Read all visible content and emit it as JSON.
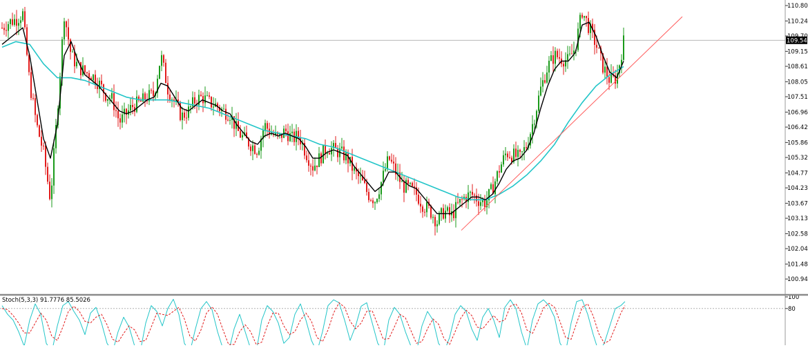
{
  "chart_data": [
    {
      "type": "candlestick",
      "title": "",
      "ylim": [
        100.4,
        111.0
      ],
      "y_ticks": [
        "110.800",
        "110.245",
        "109.705",
        "109.150",
        "108.610",
        "108.055",
        "107.515",
        "106.960",
        "106.420",
        "105.865",
        "105.325",
        "104.770",
        "104.230",
        "103.675",
        "103.135",
        "102.580",
        "102.040",
        "101.485",
        "100.945"
      ],
      "current_price": "109.549",
      "colors": {
        "up": "#1a9a1a",
        "down": "#e21b1b",
        "fast_ma": "#000000",
        "slow_ma": "#22c5c8",
        "trendline": "#ff5a5a",
        "price_line": "#b8b8b8"
      },
      "series": [
        {
          "kind": "price_close",
          "x": [
            0,
            10,
            20,
            30,
            40,
            50,
            60,
            70,
            80,
            90,
            100,
            110,
            120,
            130,
            140,
            150,
            160,
            170,
            180,
            190,
            200,
            210,
            220,
            230,
            240,
            250,
            260,
            270,
            280,
            290,
            300,
            310,
            320,
            330,
            340,
            350,
            360,
            370,
            380,
            390,
            400,
            410,
            420,
            430,
            440,
            450,
            460,
            470,
            480,
            490,
            500,
            510,
            520,
            530,
            540,
            550,
            560,
            570,
            580,
            590,
            600,
            610,
            620,
            630,
            640,
            650,
            660,
            670,
            680,
            690,
            700,
            710,
            720,
            730,
            740,
            750,
            760,
            770,
            780,
            790,
            800,
            810,
            820,
            830,
            840,
            850,
            860,
            870,
            880,
            890,
            900
          ],
          "values": [
            110.0,
            110.2,
            110.3,
            110.5,
            108.0,
            106.5,
            105.5,
            103.8,
            107.0,
            110.5,
            109.0,
            108.6,
            108.4,
            108.3,
            108.0,
            107.6,
            107.4,
            106.6,
            106.9,
            107.2,
            107.3,
            107.5,
            107.6,
            109.0,
            107.8,
            107.3,
            106.8,
            107.0,
            107.4,
            107.5,
            107.3,
            107.2,
            107.0,
            106.9,
            106.3,
            106.0,
            105.8,
            105.6,
            106.5,
            106.2,
            106.0,
            106.3,
            106.0,
            106.1,
            105.5,
            105.0,
            105.3,
            105.7,
            105.6,
            105.5,
            105.3,
            104.8,
            104.5,
            104.0,
            103.8,
            104.5,
            105.3,
            104.8,
            104.3,
            104.2,
            104.0,
            103.6,
            103.4,
            103.0,
            103.4,
            103.2,
            103.6,
            103.9,
            104.0,
            103.8,
            103.7,
            104.2,
            104.9,
            105.5,
            105.4,
            105.3,
            105.8,
            106.7,
            107.8,
            108.6,
            109.0,
            108.9,
            108.8,
            109.3,
            110.6,
            110.0,
            109.4,
            108.6,
            108.1,
            108.2,
            109.5
          ]
        },
        {
          "kind": "moving_average_fast",
          "x": [
            0,
            10,
            20,
            30,
            40,
            50,
            60,
            70,
            80,
            90,
            100,
            110,
            120,
            130,
            140,
            150,
            160,
            170,
            180,
            190,
            200,
            210,
            220,
            230,
            240,
            250,
            260,
            270,
            280,
            290,
            300,
            310,
            320,
            330,
            340,
            350,
            360,
            370,
            380,
            390,
            400,
            410,
            420,
            430,
            440,
            450,
            460,
            470,
            480,
            490,
            500,
            510,
            520,
            530,
            540,
            550,
            560,
            570,
            580,
            590,
            600,
            610,
            620,
            630,
            640,
            650,
            660,
            670,
            680,
            690,
            700,
            710,
            720,
            730,
            740,
            750,
            760,
            770,
            780,
            790,
            800,
            810,
            820,
            830,
            840,
            850,
            860,
            870,
            880,
            890,
            900
          ],
          "values": [
            109.4,
            109.6,
            109.8,
            110.0,
            109.0,
            107.5,
            106.0,
            105.3,
            106.5,
            109.0,
            109.5,
            108.8,
            108.3,
            108.1,
            107.9,
            107.6,
            107.3,
            107.0,
            106.9,
            107.0,
            107.2,
            107.4,
            107.5,
            108.0,
            107.9,
            107.5,
            107.1,
            107.0,
            107.2,
            107.4,
            107.3,
            107.2,
            107.0,
            106.9,
            106.5,
            106.2,
            105.9,
            105.8,
            106.1,
            106.2,
            106.1,
            106.2,
            106.1,
            106.0,
            105.7,
            105.3,
            105.3,
            105.5,
            105.6,
            105.5,
            105.4,
            105.0,
            104.7,
            104.4,
            104.1,
            104.3,
            104.8,
            104.8,
            104.5,
            104.3,
            104.2,
            103.9,
            103.6,
            103.3,
            103.3,
            103.3,
            103.5,
            103.7,
            103.9,
            103.9,
            103.8,
            104.0,
            104.4,
            104.9,
            105.2,
            105.3,
            105.6,
            106.2,
            107.1,
            107.9,
            108.5,
            108.8,
            108.8,
            109.1,
            110.1,
            110.2,
            109.7,
            109.0,
            108.4,
            108.2,
            108.8
          ]
        },
        {
          "kind": "moving_average_slow",
          "x": [
            0,
            20,
            40,
            60,
            80,
            100,
            120,
            140,
            160,
            180,
            200,
            220,
            240,
            260,
            280,
            300,
            320,
            340,
            360,
            380,
            400,
            420,
            440,
            460,
            480,
            500,
            520,
            540,
            560,
            580,
            600,
            620,
            640,
            660,
            680,
            700,
            720,
            740,
            760,
            780,
            800,
            820,
            840,
            860,
            880,
            900
          ],
          "values": [
            109.3,
            109.5,
            109.4,
            108.7,
            108.2,
            108.2,
            108.1,
            107.9,
            107.7,
            107.5,
            107.4,
            107.4,
            107.4,
            107.3,
            107.2,
            107.1,
            106.9,
            106.7,
            106.5,
            106.3,
            106.2,
            106.1,
            106.0,
            105.8,
            105.7,
            105.5,
            105.3,
            105.1,
            104.9,
            104.7,
            104.5,
            104.3,
            104.1,
            103.9,
            103.8,
            103.8,
            104.0,
            104.3,
            104.7,
            105.2,
            105.8,
            106.6,
            107.3,
            107.9,
            108.3,
            108.6
          ]
        },
        {
          "kind": "trendline",
          "x": [
            665,
            985
          ],
          "values": [
            102.7,
            110.4
          ]
        }
      ]
    },
    {
      "type": "line",
      "indicator_label": "Stoch(5,3,3) 91.7776 85.5026",
      "ylim": [
        0,
        100
      ],
      "y_ticks": [
        "100",
        "80"
      ],
      "series": [
        {
          "kind": "main",
          "x": [
            0,
            8,
            16,
            24,
            32,
            40,
            48,
            56,
            64,
            72,
            80,
            88,
            96,
            104,
            112,
            120,
            128,
            136,
            144,
            152,
            160,
            168,
            176,
            184,
            192,
            200,
            208,
            216,
            224,
            232,
            240,
            248,
            256,
            264,
            272,
            280,
            288,
            296,
            304,
            312,
            320,
            328,
            336,
            344,
            352,
            360,
            368,
            376,
            384,
            392,
            400,
            408,
            416,
            424,
            432,
            440,
            448,
            456,
            464,
            472,
            480,
            488,
            496,
            504,
            512,
            520,
            528,
            536,
            544,
            552,
            560,
            568,
            576,
            584,
            592,
            600,
            608,
            616,
            624,
            632,
            640,
            648,
            656,
            664,
            672,
            680,
            688,
            696,
            704,
            712,
            720,
            728,
            736,
            744,
            752,
            760,
            768,
            776,
            784,
            792,
            800,
            808,
            816,
            824,
            832,
            840,
            848,
            856,
            864,
            872,
            880,
            888,
            896,
            902
          ],
          "values": [
            85,
            70,
            60,
            40,
            15,
            60,
            88,
            70,
            20,
            5,
            50,
            85,
            92,
            75,
            60,
            35,
            72,
            82,
            55,
            20,
            5,
            40,
            65,
            48,
            15,
            5,
            55,
            85,
            75,
            50,
            80,
            96,
            70,
            20,
            5,
            45,
            80,
            92,
            78,
            40,
            10,
            5,
            45,
            70,
            40,
            10,
            5,
            60,
            85,
            75,
            55,
            20,
            30,
            70,
            88,
            60,
            25,
            5,
            40,
            85,
            95,
            90,
            60,
            25,
            50,
            84,
            90,
            55,
            20,
            5,
            60,
            82,
            70,
            40,
            15,
            5,
            50,
            75,
            60,
            20,
            5,
            30,
            70,
            85,
            75,
            45,
            25,
            65,
            80,
            60,
            30,
            82,
            95,
            80,
            40,
            10,
            60,
            88,
            95,
            85,
            65,
            20,
            5,
            55,
            92,
            95,
            70,
            35,
            5,
            20,
            50,
            80,
            85,
            92
          ]
        },
        {
          "kind": "signal",
          "x": [
            0,
            8,
            16,
            24,
            32,
            40,
            48,
            56,
            64,
            72,
            80,
            88,
            96,
            104,
            112,
            120,
            128,
            136,
            144,
            152,
            160,
            168,
            176,
            184,
            192,
            200,
            208,
            216,
            224,
            232,
            240,
            248,
            256,
            264,
            272,
            280,
            288,
            296,
            304,
            312,
            320,
            328,
            336,
            344,
            352,
            360,
            368,
            376,
            384,
            392,
            400,
            408,
            416,
            424,
            432,
            440,
            448,
            456,
            464,
            472,
            480,
            488,
            496,
            504,
            512,
            520,
            528,
            536,
            544,
            552,
            560,
            568,
            576,
            584,
            592,
            600,
            608,
            616,
            624,
            632,
            640,
            648,
            656,
            664,
            672,
            680,
            688,
            696,
            704,
            712,
            720,
            728,
            736,
            744,
            752,
            760,
            768,
            776,
            784,
            792,
            800,
            808,
            816,
            824,
            832,
            840,
            848,
            856,
            864,
            872,
            880,
            888,
            896,
            902
          ],
          "values": [
            80,
            78,
            68,
            55,
            38,
            38,
            55,
            72,
            60,
            32,
            25,
            48,
            75,
            84,
            75,
            58,
            55,
            65,
            70,
            52,
            27,
            22,
            37,
            50,
            43,
            23,
            25,
            48,
            72,
            70,
            68,
            75,
            82,
            62,
            32,
            24,
            43,
            72,
            83,
            70,
            43,
            18,
            18,
            40,
            52,
            40,
            18,
            22,
            50,
            72,
            72,
            50,
            35,
            40,
            60,
            72,
            58,
            30,
            23,
            43,
            72,
            90,
            82,
            58,
            45,
            55,
            75,
            76,
            52,
            27,
            28,
            48,
            70,
            64,
            42,
            20,
            23,
            45,
            62,
            53,
            28,
            18,
            40,
            63,
            77,
            68,
            48,
            45,
            57,
            68,
            57,
            60,
            84,
            88,
            73,
            43,
            37,
            58,
            81,
            89,
            82,
            57,
            30,
            27,
            55,
            82,
            88,
            67,
            37,
            20,
            25,
            48,
            72,
            85
          ]
        }
      ]
    }
  ]
}
